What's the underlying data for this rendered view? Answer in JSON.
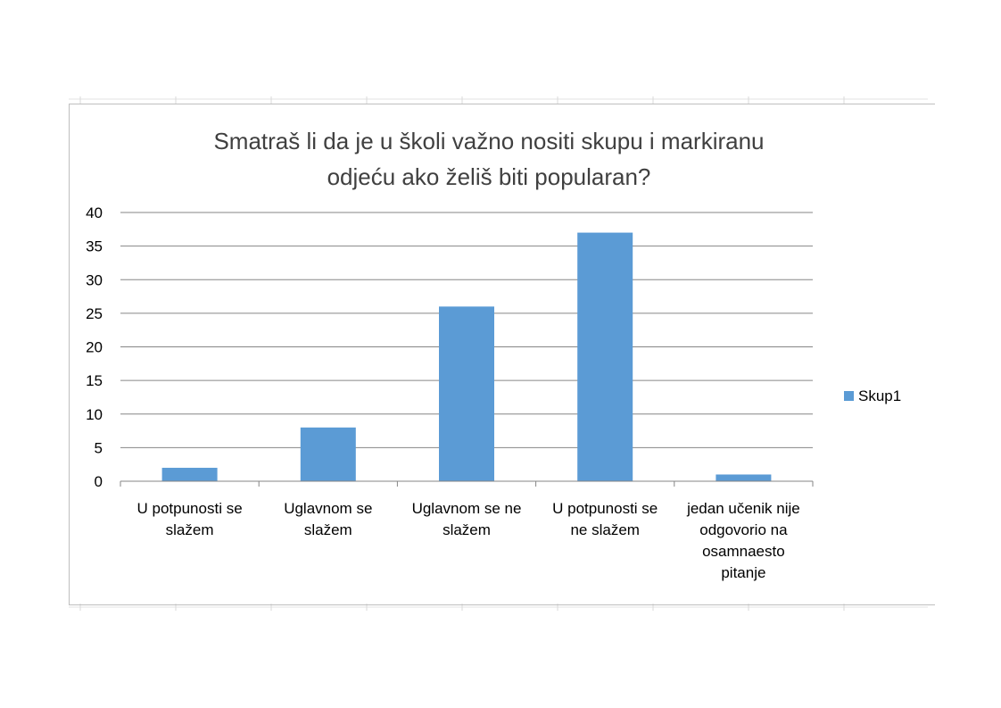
{
  "chart_data": {
    "type": "bar",
    "title": "Smatraš li da je u školi važno nositi skupu i markiranu odjeću ako želiš biti popularan?",
    "title_lines": [
      "Smatraš li da je u školi važno nositi skupu i markiranu",
      "odjeću ako želiš biti popularan?"
    ],
    "categories": [
      "U potpunosti se slažem",
      "Uglavnom se slažem",
      "Uglavnom se ne slažem",
      "U potpunosti se ne slažem",
      "jedan učenik nije odgovorio na osamnaesto pitanje"
    ],
    "category_lines": [
      [
        "U potpunosti se",
        "slažem"
      ],
      [
        "Uglavnom se",
        "slažem"
      ],
      [
        "Uglavnom se ne",
        "slažem"
      ],
      [
        "U potpunosti se",
        "ne slažem"
      ],
      [
        "jedan učenik nije",
        "odgovorio na",
        "osamnaesto",
        "pitanje"
      ]
    ],
    "series": [
      {
        "name": "Skup1",
        "values": [
          2,
          8,
          26,
          37,
          1
        ],
        "color": "#5b9bd5"
      }
    ],
    "ylim": [
      0,
      40
    ],
    "yticks": [
      0,
      5,
      10,
      15,
      20,
      25,
      30,
      35,
      40
    ],
    "xlabel": "",
    "ylabel": "",
    "grid": true,
    "legend": "right"
  }
}
